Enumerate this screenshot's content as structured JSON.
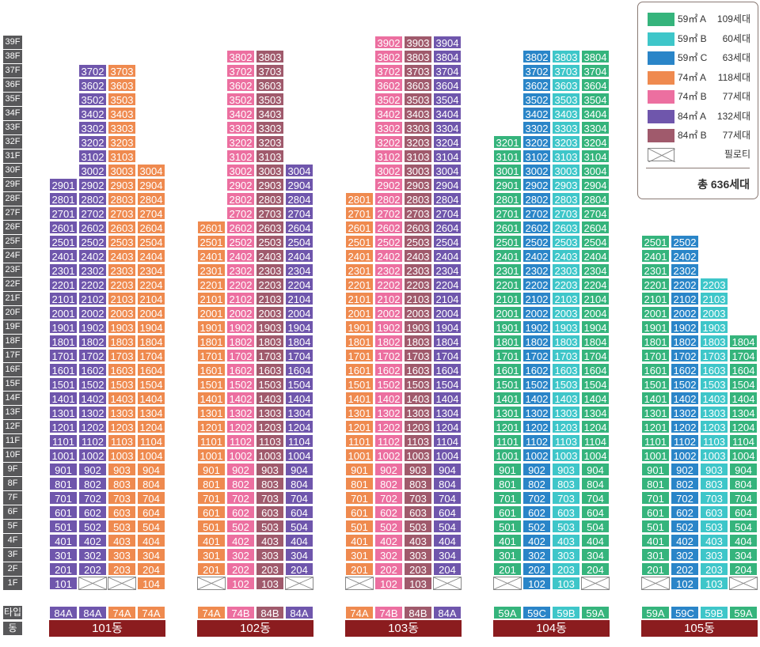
{
  "colors": {
    "59A": "#35b47c",
    "59B": "#3ec6c9",
    "59C": "#2a85c8",
    "74A": "#ef8a4f",
    "74B": "#ec6fa0",
    "84A": "#6f56ac",
    "84B": "#a05a6c",
    "floor_bg": "#58585a",
    "dong_bg": "#8b1c1f",
    "legend_border": "#8a7a74"
  },
  "floors": [
    "39F",
    "38F",
    "37F",
    "36F",
    "35F",
    "34F",
    "33F",
    "32F",
    "31F",
    "30F",
    "29F",
    "28F",
    "27F",
    "26F",
    "25F",
    "24F",
    "23F",
    "22F",
    "21F",
    "20F",
    "19F",
    "18F",
    "17F",
    "16F",
    "15F",
    "14F",
    "13F",
    "12F",
    "11F",
    "10F",
    "9F",
    "8F",
    "7F",
    "6F",
    "5F",
    "4F",
    "3F",
    "2F",
    "1F"
  ],
  "row_labels": {
    "type": "타입",
    "dong": "동"
  },
  "buildings": [
    {
      "name": "101동",
      "line_types": [
        "84A",
        "84A",
        "74A",
        "74A"
      ],
      "tops": [
        29,
        37,
        37,
        30
      ],
      "piloti": [
        false,
        true,
        true,
        false
      ]
    },
    {
      "name": "102동",
      "line_types": [
        "74A",
        "74B",
        "84B",
        "84A"
      ],
      "tops": [
        26,
        38,
        38,
        30
      ],
      "piloti": [
        true,
        false,
        false,
        true
      ]
    },
    {
      "name": "103동",
      "line_types": [
        "74A",
        "74B",
        "84B",
        "84A"
      ],
      "tops": [
        28,
        39,
        39,
        39
      ],
      "piloti": [
        true,
        false,
        false,
        true
      ]
    },
    {
      "name": "104동",
      "line_types": [
        "59A",
        "59C",
        "59B",
        "59A"
      ],
      "tops": [
        32,
        38,
        38,
        38
      ],
      "piloti": [
        true,
        false,
        false,
        true
      ]
    },
    {
      "name": "105동",
      "line_types": [
        "59A",
        "59C",
        "59B",
        "59A"
      ],
      "tops": [
        25,
        25,
        22,
        18
      ],
      "piloti": [
        true,
        false,
        false,
        true
      ]
    }
  ],
  "legend": {
    "items": [
      {
        "type": "59㎡ A",
        "count": "109세대",
        "key": "59A"
      },
      {
        "type": "59㎡ B",
        "count": "60세대",
        "key": "59B"
      },
      {
        "type": "59㎡ C",
        "count": "63세대",
        "key": "59C"
      },
      {
        "type": "74㎡ A",
        "count": "118세대",
        "key": "74A"
      },
      {
        "type": "74㎡ B",
        "count": "77세대",
        "key": "74B"
      },
      {
        "type": "84㎡ A",
        "count": "132세대",
        "key": "84A"
      },
      {
        "type": "84㎡ B",
        "count": "77세대",
        "key": "84B"
      }
    ],
    "piloti_label": "필로티",
    "total": "총 636세대"
  }
}
